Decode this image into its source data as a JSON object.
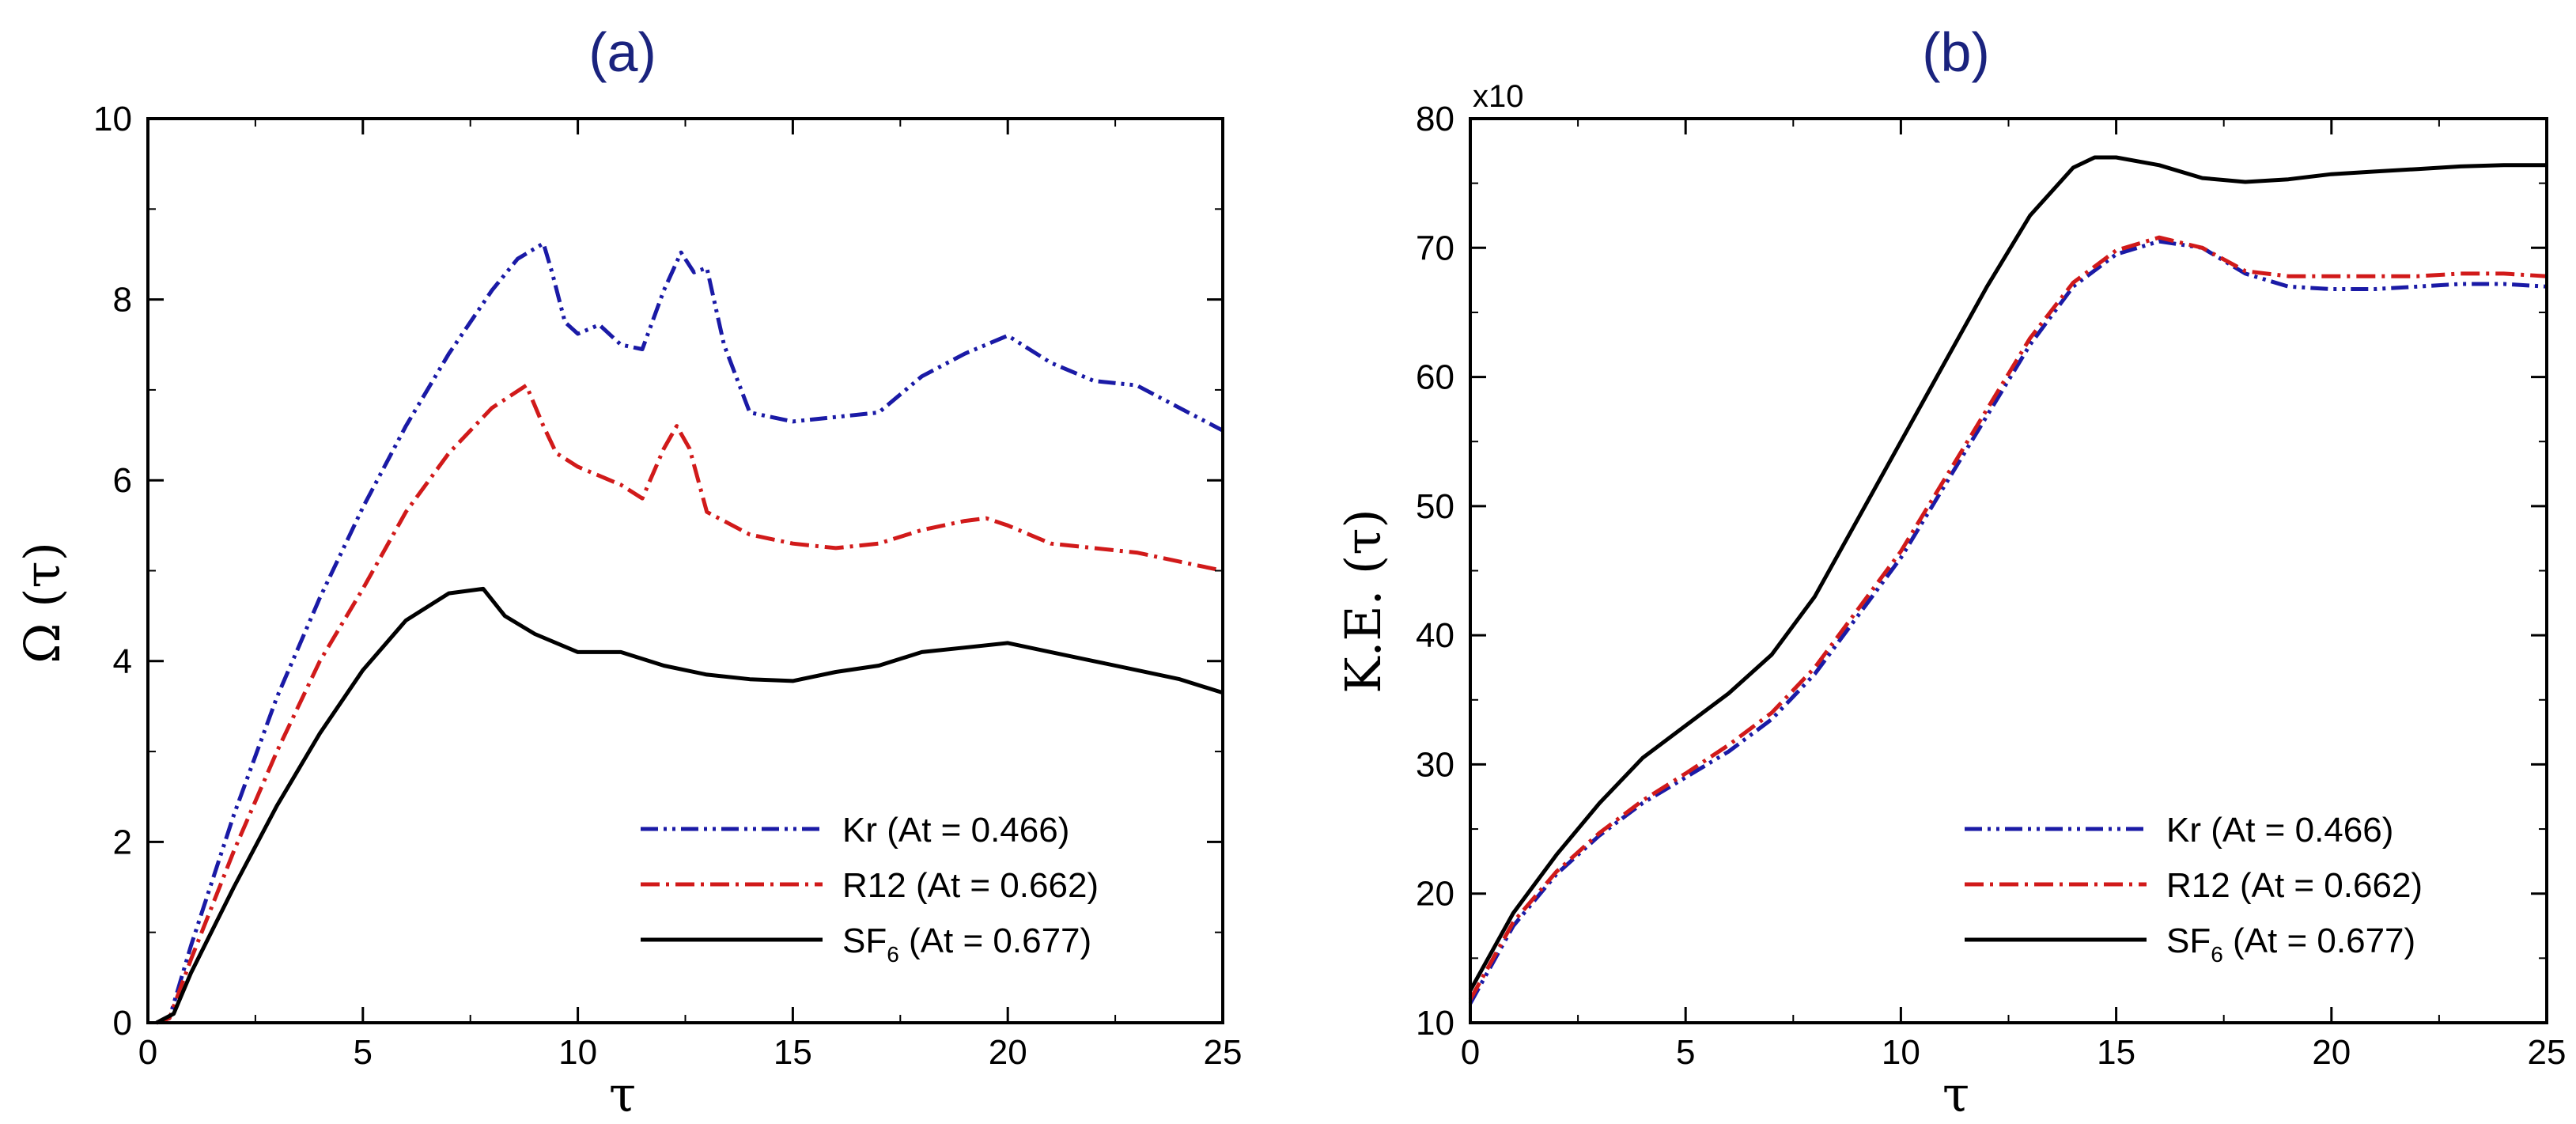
{
  "chart_data": [
    {
      "type": "line",
      "title": "(a)",
      "xlabel": "τ",
      "ylabel": "Ω (τ)",
      "xlim": [
        0,
        25
      ],
      "ylim": [
        0,
        10
      ],
      "xticks": [
        0,
        5,
        10,
        15,
        20,
        25
      ],
      "yticks": [
        0,
        2,
        4,
        6,
        8,
        10
      ],
      "legend_position": "bottom-right",
      "series": [
        {
          "name": "Kr (At = 0.466)",
          "label_main": "Kr (At = 0.466)",
          "color": "#1a1aa6",
          "dash": "dashdotdot",
          "x": [
            0.2,
            0.5,
            1,
            2,
            3,
            4,
            5,
            6,
            7,
            8,
            8.6,
            9.2,
            9.4,
            9.7,
            10,
            10.5,
            11,
            11.5,
            12,
            12.4,
            12.7,
            13,
            13.4,
            14,
            15,
            16,
            17,
            18,
            19,
            20,
            21,
            22,
            23,
            24,
            25
          ],
          "y": [
            0,
            0.05,
            0.85,
            2.3,
            3.6,
            4.7,
            5.7,
            6.6,
            7.4,
            8.1,
            8.45,
            8.62,
            8.3,
            7.75,
            7.62,
            7.72,
            7.5,
            7.45,
            8.1,
            8.52,
            8.3,
            8.35,
            7.5,
            6.75,
            6.65,
            6.7,
            6.75,
            7.15,
            7.4,
            7.6,
            7.3,
            7.1,
            7.05,
            6.8,
            6.55
          ]
        },
        {
          "name": "R12 (At = 0.662)",
          "label_main": "R12 (At = 0.662)",
          "color": "#d11a1a",
          "dash": "dashdot",
          "x": [
            0.2,
            0.5,
            1,
            2,
            3,
            4,
            5,
            6,
            7,
            8,
            8.8,
            9.2,
            9.5,
            10,
            11,
            11.5,
            12,
            12.3,
            12.6,
            13,
            14,
            15,
            16,
            17,
            18,
            19,
            19.5,
            20,
            21,
            22,
            23,
            24,
            25
          ],
          "y": [
            0,
            0.05,
            0.7,
            1.9,
            3.0,
            4.0,
            4.8,
            5.65,
            6.3,
            6.8,
            7.05,
            6.6,
            6.3,
            6.15,
            5.95,
            5.8,
            6.35,
            6.6,
            6.35,
            5.65,
            5.4,
            5.3,
            5.25,
            5.3,
            5.45,
            5.55,
            5.58,
            5.5,
            5.3,
            5.25,
            5.2,
            5.1,
            5.0
          ]
        },
        {
          "name": "SF6 (At = 0.677)",
          "label_main": "SF",
          "label_sub": "6",
          "label_tail": " (At = 0.677)",
          "color": "#000000",
          "dash": "solid",
          "x": [
            0.2,
            0.6,
            1,
            2,
            3,
            4,
            5,
            6,
            7,
            7.8,
            8.3,
            9,
            10,
            11,
            12,
            13,
            14,
            15,
            16,
            17,
            18,
            19,
            20,
            21,
            22,
            23,
            24,
            25
          ],
          "y": [
            0,
            0.1,
            0.55,
            1.5,
            2.4,
            3.2,
            3.9,
            4.45,
            4.75,
            4.8,
            4.5,
            4.3,
            4.1,
            4.1,
            3.95,
            3.85,
            3.8,
            3.78,
            3.88,
            3.95,
            4.1,
            4.15,
            4.2,
            4.1,
            4.0,
            3.9,
            3.8,
            3.65
          ]
        }
      ]
    },
    {
      "type": "line",
      "title": "(b)",
      "xlabel": "τ",
      "ylabel": "K.E. (τ)",
      "exponent_label": "x10",
      "xlim": [
        0,
        25
      ],
      "ylim": [
        10,
        80
      ],
      "xticks": [
        0,
        5,
        10,
        15,
        20,
        25
      ],
      "yticks": [
        10,
        20,
        30,
        40,
        50,
        60,
        70,
        80
      ],
      "legend_position": "bottom-right",
      "series": [
        {
          "name": "Kr (At = 0.466)",
          "label_main": "Kr (At = 0.466)",
          "color": "#1a1aa6",
          "dash": "dashdotdot",
          "x": [
            0,
            1,
            2,
            3,
            4,
            5,
            6,
            7,
            8,
            9,
            10,
            11,
            12,
            13,
            14,
            15,
            16,
            17,
            18,
            19,
            20,
            21,
            22,
            23,
            24,
            25
          ],
          "y": [
            11.5,
            17.5,
            21.5,
            24.5,
            27,
            29,
            31,
            33.5,
            37,
            41.5,
            46,
            51.5,
            57,
            62.5,
            67,
            69.5,
            70.5,
            70,
            68,
            67,
            66.8,
            66.8,
            67,
            67.2,
            67.2,
            67.0
          ]
        },
        {
          "name": "R12 (At = 0.662)",
          "label_main": "R12 (At = 0.662)",
          "color": "#d11a1a",
          "dash": "dashdot",
          "x": [
            0,
            1,
            2,
            3,
            4,
            5,
            6,
            7,
            8,
            9,
            10,
            11,
            12,
            13,
            14,
            15,
            16,
            17,
            18,
            19,
            20,
            21,
            22,
            23,
            24,
            25
          ],
          "y": [
            11.8,
            17.8,
            21.7,
            24.7,
            27.2,
            29.3,
            31.5,
            34.0,
            37.5,
            42.0,
            46.5,
            52.0,
            57.5,
            63.0,
            67.3,
            69.8,
            70.8,
            70.0,
            68.2,
            67.8,
            67.8,
            67.8,
            67.8,
            68.0,
            68.0,
            67.8
          ]
        },
        {
          "name": "SF6 (At = 0.677)",
          "label_main": "SF",
          "label_sub": "6",
          "label_tail": " (At = 0.677)",
          "color": "#000000",
          "dash": "solid",
          "x": [
            0,
            1,
            2,
            3,
            4,
            5,
            6,
            7,
            8,
            9,
            10,
            11,
            12,
            13,
            14,
            14.5,
            15,
            16,
            17,
            18,
            19,
            20,
            21,
            22,
            23,
            24,
            25
          ],
          "y": [
            12.5,
            18.5,
            23,
            27,
            30.5,
            33,
            35.5,
            38.5,
            43,
            49,
            55,
            61,
            67,
            72.5,
            76.2,
            77,
            77,
            76.4,
            75.4,
            75.1,
            75.3,
            75.7,
            75.9,
            76.1,
            76.3,
            76.4,
            76.4
          ]
        }
      ]
    }
  ]
}
